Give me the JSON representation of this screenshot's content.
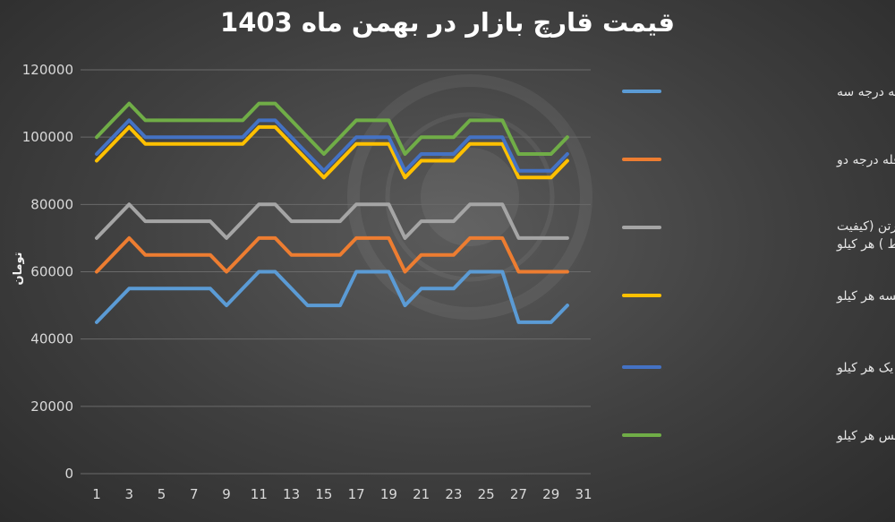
{
  "chart_data": {
    "type": "line",
    "title": "قیمت قارچ بازار در بهمن ماه 1403",
    "xlabel": "",
    "ylabel": "تومان",
    "xlim": [
      1,
      31
    ],
    "ylim": [
      0,
      120000
    ],
    "x_ticks": [
      1,
      3,
      5,
      7,
      9,
      11,
      13,
      15,
      17,
      19,
      21,
      23,
      25,
      27,
      29,
      31
    ],
    "y_ticks": [
      0,
      20000,
      40000,
      60000,
      80000,
      100000,
      120000
    ],
    "grid": true,
    "legend_position": "right",
    "x": [
      1,
      2,
      3,
      4,
      5,
      6,
      7,
      8,
      9,
      10,
      11,
      12,
      13,
      14,
      15,
      16,
      17,
      18,
      19,
      20,
      21,
      22,
      23,
      24,
      25,
      26,
      27,
      28,
      29,
      30
    ],
    "series": [
      {
        "name": "قارچ فله درجه سه",
        "color": "#5b9bd5",
        "values": [
          45000,
          50000,
          55000,
          55000,
          55000,
          55000,
          55000,
          55000,
          50000,
          55000,
          60000,
          60000,
          55000,
          50000,
          50000,
          50000,
          60000,
          60000,
          60000,
          50000,
          55000,
          55000,
          55000,
          60000,
          60000,
          60000,
          45000,
          45000,
          45000,
          50000
        ]
      },
      {
        "name": "قارچ فله درجه دو",
        "color": "#ed7d31",
        "values": [
          60000,
          65000,
          70000,
          65000,
          65000,
          65000,
          65000,
          65000,
          60000,
          65000,
          70000,
          70000,
          65000,
          65000,
          65000,
          65000,
          70000,
          70000,
          70000,
          60000,
          65000,
          65000,
          65000,
          70000,
          70000,
          70000,
          60000,
          60000,
          60000,
          60000
        ]
      },
      {
        "name": "قارچ فله در سبد و کیسه و کارتن (کیفیت متوسط ) هر کیلو",
        "color": "#a5a5a5",
        "values": [
          70000,
          75000,
          80000,
          75000,
          75000,
          75000,
          75000,
          75000,
          70000,
          75000,
          80000,
          80000,
          75000,
          75000,
          75000,
          75000,
          80000,
          80000,
          80000,
          70000,
          75000,
          75000,
          75000,
          80000,
          80000,
          80000,
          70000,
          70000,
          70000,
          70000
        ]
      },
      {
        "name": "قارچ فله در کیسه هر کیلو",
        "color": "#ffc000",
        "values": [
          93000,
          98000,
          103000,
          98000,
          98000,
          98000,
          98000,
          98000,
          98000,
          98000,
          103000,
          103000,
          98000,
          93000,
          88000,
          93000,
          98000,
          98000,
          98000,
          88000,
          93000,
          93000,
          93000,
          98000,
          98000,
          98000,
          88000,
          88000,
          88000,
          93000
        ]
      },
      {
        "name": "قارچ فله سبد درجه یک هر کیلو",
        "color": "#4472c4",
        "values": [
          95000,
          100000,
          105000,
          100000,
          100000,
          100000,
          100000,
          100000,
          100000,
          100000,
          105000,
          105000,
          100000,
          95000,
          90000,
          95000,
          100000,
          100000,
          100000,
          90000,
          95000,
          95000,
          95000,
          100000,
          100000,
          100000,
          90000,
          90000,
          90000,
          95000
        ]
      },
      {
        "name": "قارچ فله در سبد لوکس هر کیلو",
        "color": "#70ad47",
        "values": [
          100000,
          105000,
          110000,
          105000,
          105000,
          105000,
          105000,
          105000,
          105000,
          105000,
          110000,
          110000,
          105000,
          100000,
          95000,
          100000,
          105000,
          105000,
          105000,
          95000,
          100000,
          100000,
          100000,
          105000,
          105000,
          105000,
          95000,
          95000,
          95000,
          100000
        ]
      }
    ]
  }
}
